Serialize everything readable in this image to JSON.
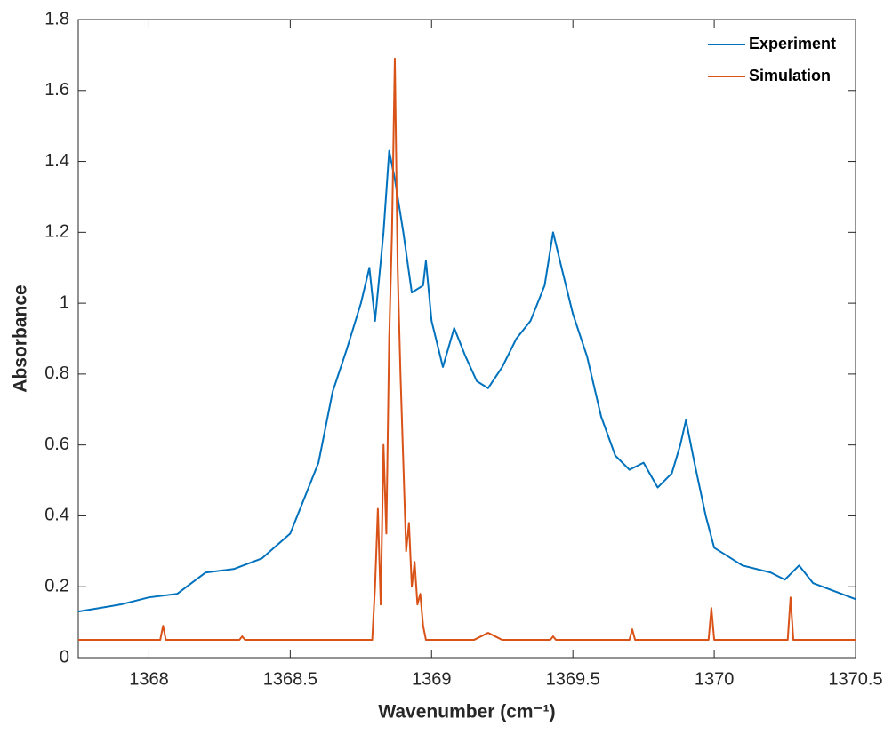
{
  "chart_data": {
    "type": "line",
    "xlabel": "Wavenumber (cm⁻¹)",
    "ylabel": "Absorbance",
    "xlim": [
      1367.75,
      1370.5
    ],
    "ylim": [
      0,
      1.8
    ],
    "xticks": [
      1368,
      1368.5,
      1369,
      1369.5,
      1370,
      1370.5
    ],
    "yticks": [
      0,
      0.2,
      0.4,
      0.6,
      0.8,
      1,
      1.2,
      1.4,
      1.6,
      1.8
    ],
    "legend": "upper right",
    "grid": false,
    "series": [
      {
        "name": "Experiment",
        "color": "#0072BD",
        "x": [
          1367.75,
          1367.9,
          1368.0,
          1368.1,
          1368.2,
          1368.3,
          1368.4,
          1368.5,
          1368.6,
          1368.65,
          1368.7,
          1368.75,
          1368.78,
          1368.8,
          1368.83,
          1368.85,
          1368.87,
          1368.9,
          1368.93,
          1368.97,
          1368.98,
          1369.0,
          1369.04,
          1369.08,
          1369.12,
          1369.16,
          1369.2,
          1369.25,
          1369.3,
          1369.35,
          1369.4,
          1369.43,
          1369.46,
          1369.5,
          1369.55,
          1369.6,
          1369.65,
          1369.7,
          1369.75,
          1369.8,
          1369.85,
          1369.88,
          1369.9,
          1369.93,
          1369.97,
          1370.0,
          1370.1,
          1370.2,
          1370.25,
          1370.3,
          1370.35,
          1370.45,
          1370.5
        ],
        "values": [
          0.13,
          0.15,
          0.17,
          0.18,
          0.24,
          0.25,
          0.28,
          0.35,
          0.55,
          0.75,
          0.87,
          1.0,
          1.1,
          0.95,
          1.2,
          1.43,
          1.35,
          1.2,
          1.03,
          1.05,
          1.12,
          0.95,
          0.82,
          0.93,
          0.85,
          0.78,
          0.76,
          0.82,
          0.9,
          0.95,
          1.05,
          1.2,
          1.1,
          0.97,
          0.85,
          0.68,
          0.57,
          0.53,
          0.55,
          0.48,
          0.52,
          0.6,
          0.67,
          0.55,
          0.4,
          0.31,
          0.26,
          0.24,
          0.22,
          0.26,
          0.21,
          0.18,
          0.165
        ]
      },
      {
        "name": "Simulation",
        "color": "#D95319",
        "x": [
          1367.75,
          1368.04,
          1368.05,
          1368.06,
          1368.32,
          1368.33,
          1368.34,
          1368.79,
          1368.8,
          1368.81,
          1368.82,
          1368.83,
          1368.84,
          1368.85,
          1368.86,
          1368.87,
          1368.88,
          1368.89,
          1368.9,
          1368.91,
          1368.92,
          1368.93,
          1368.94,
          1368.95,
          1368.96,
          1368.97,
          1368.98,
          1369.15,
          1369.2,
          1369.25,
          1369.42,
          1369.43,
          1369.44,
          1369.7,
          1369.71,
          1369.72,
          1369.98,
          1369.99,
          1370.0,
          1370.26,
          1370.27,
          1370.28,
          1370.5
        ],
        "values": [
          0.05,
          0.05,
          0.09,
          0.05,
          0.05,
          0.06,
          0.05,
          0.05,
          0.2,
          0.42,
          0.15,
          0.6,
          0.35,
          0.9,
          1.2,
          1.69,
          1.1,
          0.8,
          0.55,
          0.3,
          0.38,
          0.2,
          0.27,
          0.15,
          0.18,
          0.09,
          0.05,
          0.05,
          0.07,
          0.05,
          0.05,
          0.06,
          0.05,
          0.05,
          0.08,
          0.05,
          0.05,
          0.14,
          0.05,
          0.05,
          0.17,
          0.05,
          0.05
        ]
      }
    ]
  }
}
